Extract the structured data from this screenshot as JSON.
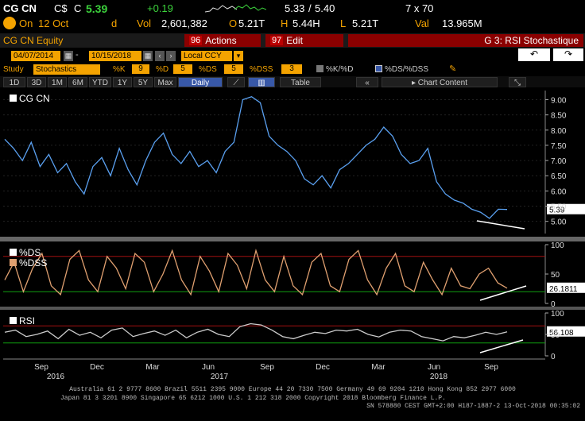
{
  "quote": {
    "ticker": "CG CN",
    "currency": "C$",
    "arrow": "C",
    "last": "5.39",
    "change": "+0.19",
    "bid": "5.33",
    "sep": "/",
    "ask": "5.40",
    "size": "7 x 70",
    "on_label": "On",
    "date": "12 Oct",
    "d": "d",
    "vol_label": "Vol",
    "vol": "2,601,382",
    "open_label": "O",
    "open": "5.21T",
    "high_label": "H",
    "high": "5.44H",
    "low_label": "L",
    "low": "5.21T",
    "val_label": "Val",
    "val": "13.965M"
  },
  "titlebar": {
    "security": "CG CN Equity",
    "actions_num": "96",
    "actions": "Actions",
    "edit_num": "97",
    "edit": "Edit",
    "view": "G 3: RSI Stochastique"
  },
  "controls": {
    "start_date": "04/07/2014",
    "end_date": "10/15/2018",
    "currency": "Local CCY"
  },
  "study": {
    "label": "Study",
    "name": "Stochastics",
    "k_label": "%K",
    "k": "9",
    "d_label": "%D",
    "d": "5",
    "ds_label": "%DS",
    "ds": "5",
    "dss_label": "%DSS",
    "dss": "3",
    "leg1": "%K/%D",
    "leg2": "%DS/%DSS"
  },
  "range": {
    "buttons": [
      "1D",
      "3D",
      "1M",
      "6M",
      "YTD",
      "1Y",
      "5Y",
      "Max"
    ],
    "period": "Daily",
    "table": "Table",
    "content": "Chart Content"
  },
  "chart_data": [
    {
      "type": "line",
      "title": "",
      "legend": [
        "CG CN"
      ],
      "ylim": [
        4.6,
        9.3
      ],
      "yticks": [
        "9.00",
        "8.50",
        "8.00",
        "7.50",
        "7.00",
        "6.50",
        "6.00",
        "5.50",
        "5.00"
      ],
      "last_label": "5.39",
      "series": [
        {
          "name": "CG CN",
          "values": [
            7.7,
            7.4,
            7.0,
            7.6,
            6.8,
            7.2,
            6.6,
            6.9,
            6.3,
            5.9,
            6.8,
            7.1,
            6.5,
            7.4,
            6.7,
            6.2,
            7.0,
            7.6,
            7.9,
            7.2,
            6.9,
            7.3,
            6.8,
            7.0,
            6.6,
            7.3,
            7.6,
            9.0,
            9.1,
            8.9,
            7.8,
            7.5,
            7.3,
            7.0,
            6.4,
            6.2,
            6.5,
            6.1,
            6.7,
            6.9,
            7.2,
            7.5,
            7.7,
            8.1,
            7.8,
            7.2,
            6.9,
            7.0,
            7.4,
            6.3,
            5.9,
            5.7,
            5.6,
            5.4,
            5.3,
            5.1,
            5.4,
            5.39
          ]
        }
      ]
    },
    {
      "type": "line",
      "title": "",
      "legend": [
        "%DS",
        "%DSS"
      ],
      "ylim": [
        0,
        100
      ],
      "yticks": [
        "100",
        "50",
        "0"
      ],
      "last_label": "26.1811",
      "series": [
        {
          "name": "%DSS",
          "values": [
            40,
            70,
            20,
            60,
            85,
            30,
            15,
            75,
            90,
            40,
            20,
            80,
            60,
            25,
            85,
            70,
            20,
            50,
            90,
            40,
            15,
            80,
            55,
            20,
            85,
            65,
            25,
            90,
            40,
            20,
            80,
            30,
            15,
            70,
            85,
            30,
            20,
            75,
            90,
            40,
            15,
            60,
            85,
            30,
            20,
            70,
            40,
            15,
            60,
            30,
            25,
            50,
            60,
            35,
            26
          ]
        }
      ]
    },
    {
      "type": "line",
      "title": "",
      "legend": [
        "RSI"
      ],
      "ylim": [
        0,
        100
      ],
      "yticks": [
        "100",
        "50",
        "0"
      ],
      "last_label": "56.108",
      "series": [
        {
          "name": "RSI",
          "values": [
            55,
            60,
            45,
            50,
            58,
            40,
            62,
            48,
            55,
            42,
            60,
            65,
            45,
            52,
            58,
            48,
            60,
            42,
            55,
            62,
            50,
            45,
            68,
            75,
            72,
            60,
            45,
            40,
            48,
            55,
            52,
            60,
            58,
            62,
            50,
            44,
            55,
            60,
            58,
            45,
            40,
            35,
            45,
            42,
            48,
            55,
            50,
            56
          ]
        }
      ]
    }
  ],
  "xaxis": {
    "months": [
      "Sep",
      "Dec",
      "Mar",
      "Jun",
      "Sep",
      "Dec",
      "Mar",
      "Jun",
      "Sep"
    ],
    "years": [
      "2016",
      "2017",
      "2018"
    ]
  },
  "footer": {
    "line1": "Australia 61 2 9777 8600 Brazil 5511 2395 9000 Europe 44 20 7330 7500 Germany 49 69 9204 1210 Hong Kong 852 2977 6000",
    "line2": "Japan 81 3 3201 8900        Singapore 65 6212 1000        U.S. 1 212 318 2000        Copyright 2018 Bloomberg Finance L.P.",
    "line3": "SN 578880 CEST GMT+2:00 H187-1887-2 13-Oct-2018 00:35:02"
  },
  "colors": {
    "amber": "#f4a300",
    "blue": "#3858a8",
    "red": "#8b0000",
    "orange": "#e0a070",
    "green": "#3cd23c"
  }
}
